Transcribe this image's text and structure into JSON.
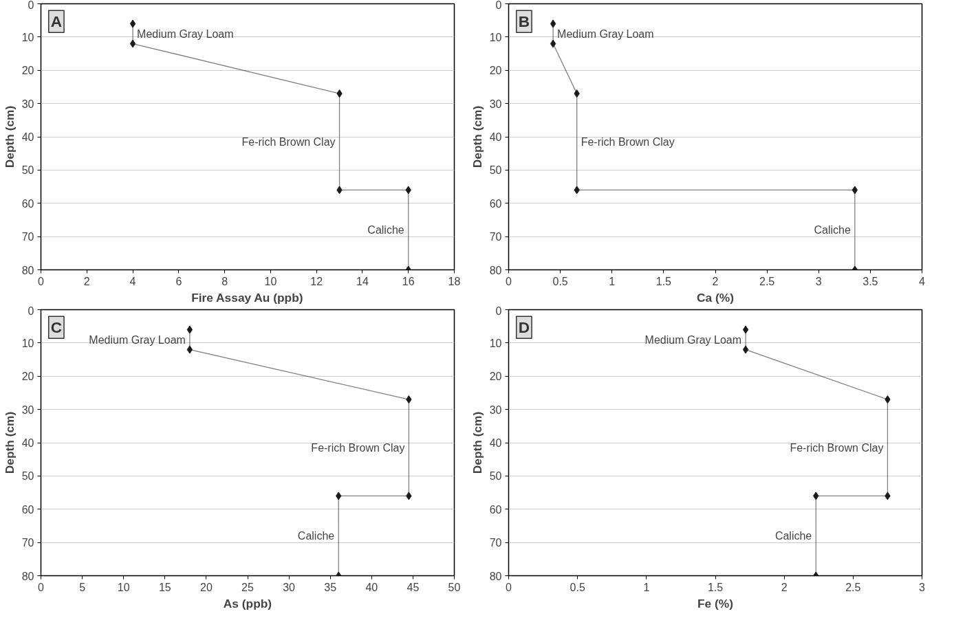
{
  "chart_data": [
    {
      "type": "line",
      "xlabel": "Fire Assay Au (ppb)",
      "ylabel": "Depth (cm)",
      "xlim": [
        0,
        18
      ],
      "xticks": [
        0,
        2,
        4,
        6,
        8,
        10,
        12,
        14,
        16,
        18
      ],
      "ylim": [
        80,
        0
      ],
      "yticks": [
        0,
        10,
        20,
        30,
        40,
        50,
        60,
        70,
        80
      ],
      "grid": "y",
      "marker": "diamond",
      "line_style": "solid",
      "series": [
        {
          "color": "#1a1a1a",
          "x": [
            4,
            4,
            13,
            13,
            16,
            16
          ],
          "values": [
            6,
            12,
            27,
            56,
            56,
            80
          ]
        }
      ],
      "annotations": [
        "A",
        "Medium Gray Loam",
        "Fe-rich Brown Clay",
        "Caliche"
      ]
    },
    {
      "type": "line",
      "xlabel": "Ca (%)",
      "ylabel": "Depth (cm)",
      "xlim": [
        0,
        4
      ],
      "xticks": [
        0,
        0.5,
        1,
        1.5,
        2,
        2.5,
        3,
        3.5,
        4
      ],
      "ylim": [
        80,
        0
      ],
      "yticks": [
        0,
        10,
        20,
        30,
        40,
        50,
        60,
        70,
        80
      ],
      "grid": "y",
      "marker": "diamond",
      "line_style": "solid",
      "series": [
        {
          "color": "#1a1a1a",
          "x": [
            0.43,
            0.43,
            0.66,
            0.66,
            3.35,
            3.35
          ],
          "values": [
            6,
            12,
            27,
            56,
            56,
            80
          ]
        }
      ],
      "annotations": [
        "B",
        "Medium Gray Loam",
        "Fe-rich Brown Clay",
        "Caliche"
      ]
    },
    {
      "type": "line",
      "xlabel": "As (ppb)",
      "ylabel": "Depth (cm)",
      "xlim": [
        0,
        50
      ],
      "xticks": [
        0,
        5,
        10,
        15,
        20,
        25,
        30,
        35,
        40,
        45,
        50
      ],
      "ylim": [
        80,
        0
      ],
      "yticks": [
        0,
        10,
        20,
        30,
        40,
        50,
        60,
        70,
        80
      ],
      "grid": "y",
      "marker": "diamond",
      "line_style": "solid",
      "series": [
        {
          "color": "#1a1a1a",
          "x": [
            18,
            18,
            44.5,
            44.5,
            36,
            36
          ],
          "values": [
            6,
            12,
            27,
            56,
            56,
            80
          ]
        }
      ],
      "annotations": [
        "C",
        "Medium Gray Loam",
        "Fe-rich Brown Clay",
        "Caliche"
      ]
    },
    {
      "type": "line",
      "xlabel": "Fe (%)",
      "ylabel": "Depth (cm)",
      "xlim": [
        0,
        3
      ],
      "xticks": [
        0,
        0.5,
        1,
        1.5,
        2,
        2.5,
        3
      ],
      "ylim": [
        80,
        0
      ],
      "yticks": [
        0,
        10,
        20,
        30,
        40,
        50,
        60,
        70,
        80
      ],
      "grid": "y",
      "marker": "diamond",
      "line_style": "solid",
      "series": [
        {
          "color": "#1a1a1a",
          "x": [
            1.72,
            1.72,
            2.75,
            2.75,
            2.23,
            2.23
          ],
          "values": [
            6,
            12,
            27,
            56,
            56,
            80
          ]
        }
      ],
      "annotations": [
        "D",
        "Medium Gray Loam",
        "Fe-rich Brown Clay",
        "Caliche"
      ]
    }
  ]
}
